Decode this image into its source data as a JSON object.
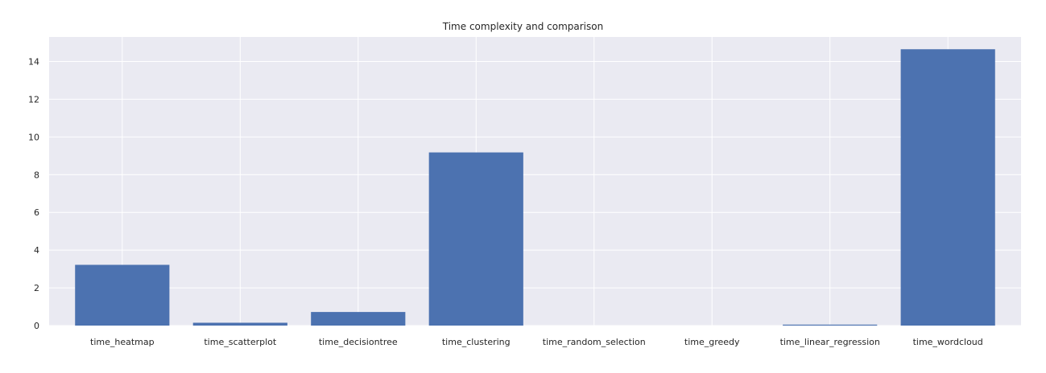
{
  "chart_data": {
    "type": "bar",
    "title": "Time complexity and comparison",
    "xlabel": "",
    "ylabel": "",
    "categories": [
      "time_heatmap",
      "time_scatterplot",
      "time_decisiontree",
      "time_clustering",
      "time_random_selection",
      "time_greedy",
      "time_linear_regression",
      "time_wordcloud"
    ],
    "values": [
      3.22,
      0.15,
      0.72,
      9.18,
      0.0,
      0.0,
      0.05,
      14.65
    ],
    "ylim": [
      0,
      15.3
    ],
    "yticks": [
      0,
      2,
      4,
      6,
      8,
      10,
      12,
      14
    ],
    "grid": true,
    "legend": "none",
    "colors": {
      "bar": "#4c72b0",
      "plot_background": "#eaeaf2",
      "grid": "#ffffff",
      "text": "#262626"
    }
  }
}
